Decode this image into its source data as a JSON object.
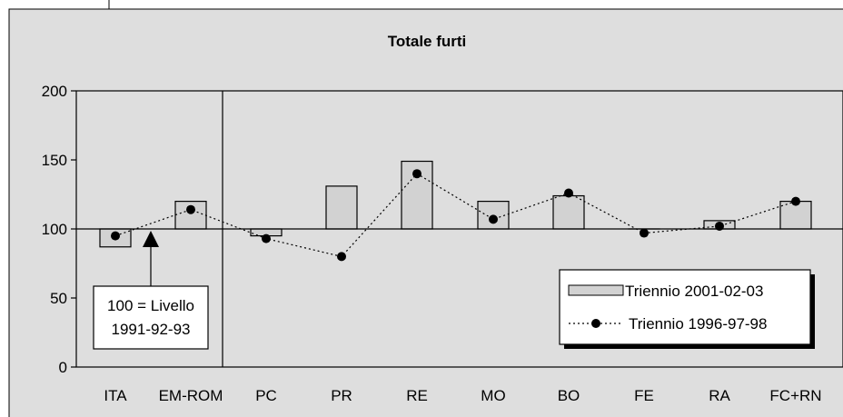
{
  "chart_data": {
    "type": "bar",
    "title": "Totale furti",
    "xlabel": "",
    "ylabel": "",
    "categories": [
      "ITA",
      "EM-ROM",
      "PC",
      "PR",
      "RE",
      "MO",
      "BO",
      "FE",
      "RA",
      "FC+RN"
    ],
    "baseline": 100,
    "ylim": [
      0,
      200
    ],
    "yticks": [
      0,
      50,
      100,
      150,
      200
    ],
    "grid": false,
    "legend_position": "bottom-right",
    "series": [
      {
        "name": "Triennio 2001-02-03",
        "kind": "bar",
        "values": [
          87,
          120,
          95,
          131,
          149,
          120,
          null,
          100,
          106,
          120
        ]
      },
      {
        "name": "Triennio 1996-97-98",
        "kind": "line-dotted-markers",
        "values": [
          95,
          114,
          93,
          80,
          140,
          107,
          126,
          97,
          102,
          120
        ]
      }
    ],
    "bo_bar_value": 124,
    "annotation": {
      "line1": "100 = Livello",
      "line2": "1991-92-93"
    }
  },
  "colors": {
    "panel_background": "#dedede",
    "bar_fill": "#d2d2d2",
    "frame": "#000000"
  }
}
